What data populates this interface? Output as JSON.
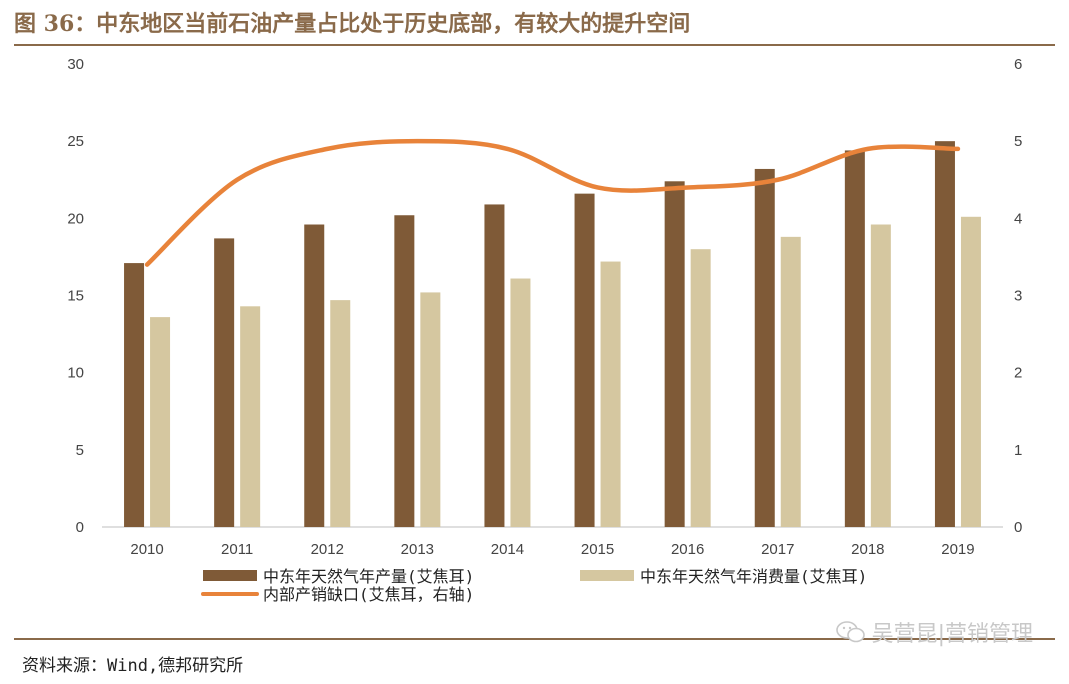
{
  "title": "图 36：中东地区当前石油产量占比处于历史底部，有较大的提升空间",
  "source": "资料来源：Wind,德邦研究所",
  "watermark": "吴营昆|营销管理",
  "colors": {
    "production": "#7f5a37",
    "consumption": "#d5c7a0",
    "gap_line": "#e8833a",
    "rule": "#8a6a4a"
  },
  "chart_data": {
    "type": "bar",
    "categories": [
      "2010",
      "2011",
      "2012",
      "2013",
      "2014",
      "2015",
      "2016",
      "2017",
      "2018",
      "2019"
    ],
    "series": [
      {
        "name": "中东年天然气年产量(艾焦耳)",
        "type": "bar",
        "axis": "left",
        "values": [
          17.1,
          18.7,
          19.6,
          20.2,
          20.9,
          21.6,
          22.4,
          23.2,
          24.4,
          25.0
        ]
      },
      {
        "name": "中东年天然气年消费量(艾焦耳)",
        "type": "bar",
        "axis": "left",
        "values": [
          13.6,
          14.3,
          14.7,
          15.2,
          16.1,
          17.2,
          18.0,
          18.8,
          19.6,
          20.1
        ]
      },
      {
        "name": "内部产销缺口(艾焦耳，右轴)",
        "type": "line",
        "axis": "right",
        "values": [
          3.4,
          4.5,
          4.9,
          5.0,
          4.9,
          4.4,
          4.4,
          4.5,
          4.9,
          4.9
        ]
      }
    ],
    "y_left": {
      "range": [
        0,
        30
      ],
      "ticks": [
        "0",
        "5",
        "10",
        "15",
        "20",
        "25",
        "30"
      ]
    },
    "y_right": {
      "range": [
        0,
        6
      ],
      "ticks": [
        "0",
        "1",
        "2",
        "3",
        "4",
        "5",
        "6"
      ]
    },
    "grid": false,
    "legend_position": "bottom"
  }
}
